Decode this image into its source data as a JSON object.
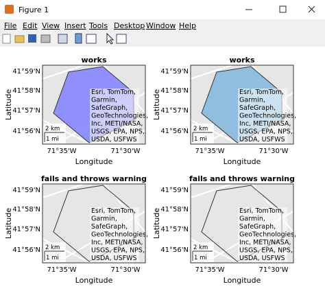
{
  "window": {
    "title": "Figure 1"
  },
  "menu": [
    "File",
    "Edit",
    "View",
    "Insert",
    "Tools",
    "Desktop",
    "Window",
    "Help"
  ],
  "axes": [
    {
      "title": "works",
      "ylabel": "Latitude",
      "xlabel": "Longitude",
      "yticks": [
        "41°59'N",
        "41°58'N",
        "41°57'N",
        "41°56'N"
      ],
      "xticks": [
        "71°35'W",
        "71°30'W"
      ],
      "attribution": [
        "Esri, TomTom,",
        "Garmin,",
        "SafeGraph,",
        "GeoTechnologies,",
        "Inc, METI/NASA,",
        "USGS, EPA, NPS,",
        "USDA, USFWS"
      ],
      "scalebar": [
        "2 km",
        "1 mi"
      ],
      "fill": "#8080ff"
    },
    {
      "title": "works",
      "ylabel": "Latitude",
      "xlabel": "Longitude",
      "yticks": [
        "41°59'N",
        "41°58'N",
        "41°57'N",
        "41°56'N"
      ],
      "xticks": [
        "71°35'W",
        "71°30'W"
      ],
      "attribution": [
        "Esri, TomTom,",
        "Garmin,",
        "SafeGraph,",
        "GeoTechnologies,",
        "Inc, METI/NASA,",
        "USGS, EPA, NPS,",
        "USDA, USFWS"
      ],
      "scalebar": [
        "2 km",
        "1 mi"
      ],
      "fill": "#7fb6dd"
    },
    {
      "title": "fails and throws warning",
      "ylabel": "Latitude",
      "xlabel": "Longitude",
      "yticks": [
        "41°59'N",
        "41°58'N",
        "41°57'N",
        "41°56'N"
      ],
      "xticks": [
        "71°35'W",
        "71°30'W"
      ],
      "attribution": [
        "Esri, TomTom,",
        "Garmin,",
        "SafeGraph,",
        "GeoTechnologies,",
        "Inc, METI/NASA,",
        "USGS, EPA, NPS,",
        "USDA, USFWS"
      ],
      "scalebar": [
        "2 km",
        "1 mi"
      ]
    },
    {
      "title": "fails and throws warning",
      "ylabel": "Latitude",
      "xlabel": "Longitude",
      "yticks": [
        "41°59'N",
        "41°58'N",
        "41°57'N",
        "41°56'N"
      ],
      "xticks": [
        "71°35'W",
        "71°30'W"
      ],
      "attribution": [
        "Esri, TomTom,",
        "Garmin,",
        "SafeGraph,",
        "GeoTechnologies,",
        "Inc, METI/NASA,",
        "USGS, EPA, NPS,",
        "USDA, USFWS"
      ],
      "scalebar": [
        "2 km",
        "1 mi"
      ]
    }
  ]
}
